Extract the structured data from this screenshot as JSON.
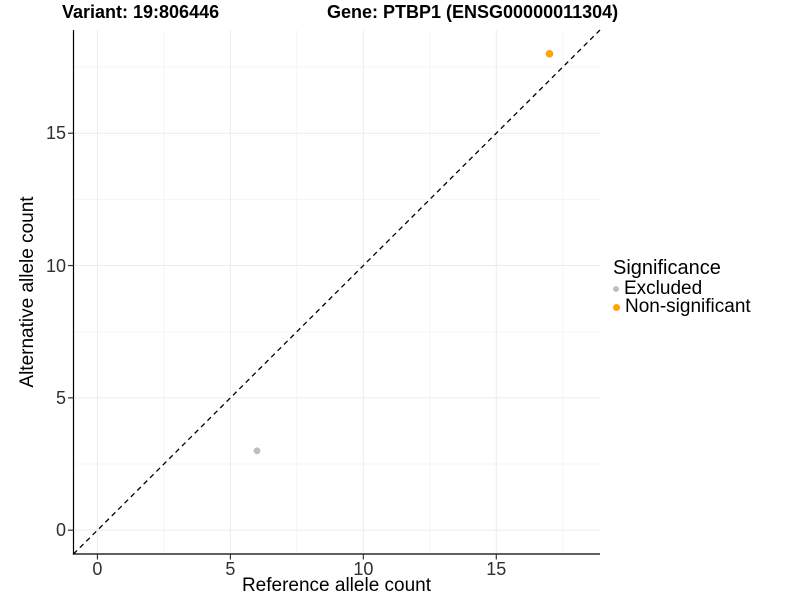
{
  "chart_data": {
    "type": "scatter",
    "titles": {
      "left": "Variant: 19:806446",
      "right": "Gene: PTBP1 (ENSG00000011304)"
    },
    "xlabel": "Reference allele count",
    "ylabel": "Alternative allele count",
    "xlim": [
      -0.9,
      18.9
    ],
    "ylim": [
      -0.9,
      18.9
    ],
    "x_major_ticks": [
      0,
      5,
      10,
      15
    ],
    "y_major_ticks": [
      0,
      5,
      10,
      15
    ],
    "x_minor_gridlines": [
      2.5,
      7.5,
      12.5,
      17.5
    ],
    "y_minor_gridlines": [
      2.5,
      7.5,
      12.5,
      17.5
    ],
    "grid": "major and minor gridlines on white background",
    "reference_line": {
      "kind": "identity y=x",
      "style": "dashed",
      "color": "#000000"
    },
    "legend": {
      "title": "Significance",
      "position": "right"
    },
    "series": [
      {
        "name": "Excluded",
        "color": "#BEBEBE",
        "points": [
          {
            "x": 6,
            "y": 3
          }
        ]
      },
      {
        "name": "Non-significant",
        "color": "#FFA500",
        "points": [
          {
            "x": 17,
            "y": 18
          }
        ]
      }
    ]
  },
  "colors": {
    "background": "#FFFFFF",
    "grid_major": "#ECECEC",
    "grid_minor": "#F5F5F5",
    "axis_line": "#000000",
    "tick_mark": "#333333",
    "tick_label": "#303030",
    "text": "#000000"
  }
}
